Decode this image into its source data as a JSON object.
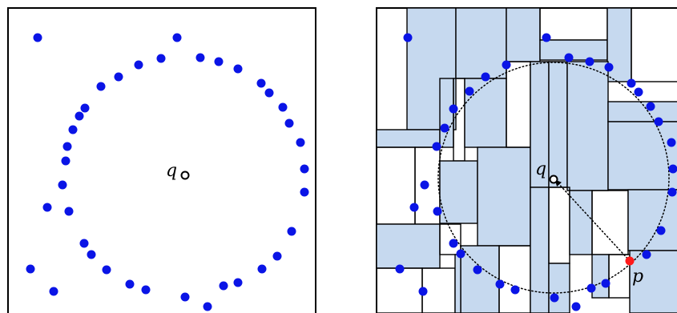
{
  "left_panel": {
    "query_label": "q"
  },
  "right_panel": {
    "query_label": "q",
    "nearest_label": "p"
  },
  "colors": {
    "points": "#0a14e6",
    "nearest_point": "#ff1a1a",
    "cell_fill": "#c6d9ef",
    "frame": "#000000"
  }
}
